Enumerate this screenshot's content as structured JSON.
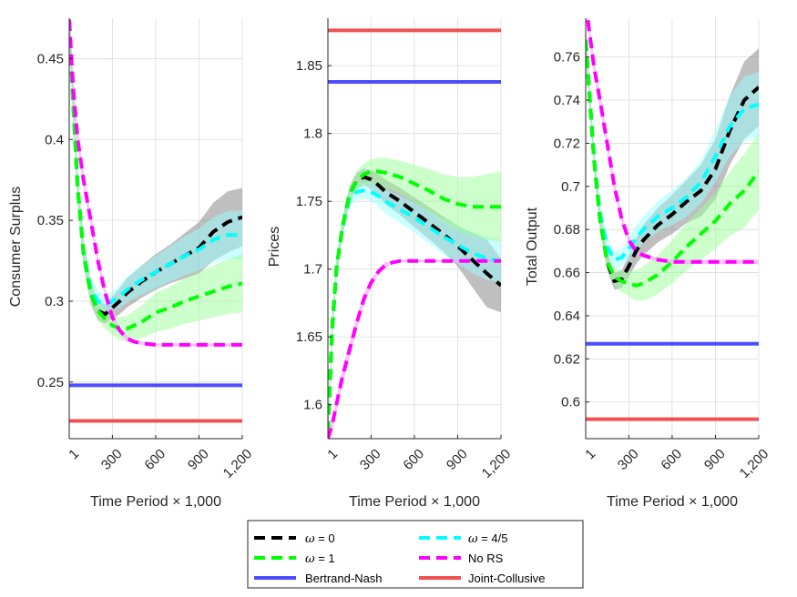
{
  "chart_data": [
    {
      "type": "line",
      "ylabel": "Consumer Surplus",
      "xlabel": "Time Period × 1,000",
      "xlim": [
        1,
        1200
      ],
      "ylim": [
        0.215,
        0.475
      ],
      "xticks": [
        1,
        300,
        600,
        900,
        1200
      ],
      "xtick_labels": [
        "1",
        "300",
        "600",
        "900",
        "1,200"
      ],
      "yticks": [
        0.25,
        0.3,
        0.35,
        0.4,
        0.45
      ],
      "ytick_labels": [
        "0.25",
        "0.3",
        "0.35",
        "0.4",
        "0.45"
      ],
      "grid": true,
      "hlines": [
        {
          "name": "Bertrand-Nash",
          "y": 0.248
        },
        {
          "name": "Joint-Collusive",
          "y": 0.226
        }
      ],
      "series": [
        {
          "name": "ω = 0",
          "x": [
            1,
            30,
            60,
            100,
            150,
            200,
            250,
            300,
            350,
            400,
            500,
            600,
            700,
            800,
            900,
            1000,
            1100,
            1200
          ],
          "y": [
            0.474,
            0.42,
            0.37,
            0.33,
            0.305,
            0.294,
            0.292,
            0.296,
            0.3,
            0.305,
            0.312,
            0.318,
            0.323,
            0.328,
            0.333,
            0.343,
            0.349,
            0.352
          ],
          "band": [
            0.012,
            0.012,
            0.01,
            0.008,
            0.007,
            0.006,
            0.006,
            0.007,
            0.008,
            0.009,
            0.01,
            0.011,
            0.012,
            0.014,
            0.016,
            0.018,
            0.019,
            0.018
          ]
        },
        {
          "name": "ω = 1",
          "x": [
            1,
            30,
            60,
            100,
            150,
            200,
            250,
            300,
            350,
            400,
            500,
            600,
            700,
            800,
            900,
            1000,
            1100,
            1200
          ],
          "y": [
            0.474,
            0.42,
            0.37,
            0.33,
            0.305,
            0.294,
            0.289,
            0.285,
            0.283,
            0.283,
            0.287,
            0.293,
            0.296,
            0.3,
            0.303,
            0.306,
            0.309,
            0.311
          ],
          "band": [
            0.012,
            0.012,
            0.01,
            0.008,
            0.007,
            0.006,
            0.006,
            0.006,
            0.007,
            0.008,
            0.01,
            0.012,
            0.013,
            0.014,
            0.015,
            0.016,
            0.017,
            0.018
          ]
        },
        {
          "name": "ω = 4/5",
          "x": [
            1,
            30,
            60,
            100,
            150,
            200,
            250,
            300,
            350,
            400,
            500,
            600,
            700,
            800,
            900,
            1000,
            1100,
            1200
          ],
          "y": [
            0.474,
            0.42,
            0.37,
            0.33,
            0.308,
            0.3,
            0.298,
            0.3,
            0.303,
            0.307,
            0.313,
            0.318,
            0.323,
            0.328,
            0.332,
            0.338,
            0.341,
            0.341
          ],
          "band": [
            0.012,
            0.012,
            0.01,
            0.008,
            0.007,
            0.006,
            0.006,
            0.006,
            0.007,
            0.008,
            0.009,
            0.01,
            0.011,
            0.012,
            0.013,
            0.014,
            0.015,
            0.015
          ]
        },
        {
          "name": "No RS",
          "x": [
            1,
            30,
            60,
            100,
            150,
            200,
            250,
            300,
            350,
            400,
            450,
            500,
            600,
            700,
            800,
            900,
            1000,
            1100,
            1200
          ],
          "y": [
            0.474,
            0.43,
            0.4,
            0.375,
            0.35,
            0.325,
            0.305,
            0.29,
            0.282,
            0.277,
            0.275,
            0.274,
            0.273,
            0.273,
            0.273,
            0.273,
            0.273,
            0.273,
            0.273
          ],
          "band": [
            0.006,
            0.006,
            0.006,
            0.005,
            0.004,
            0.003,
            0.003,
            0.002,
            0.002,
            0.002,
            0.001,
            0.001,
            0.001,
            0.001,
            0.001,
            0.001,
            0.001,
            0.001,
            0.001
          ]
        }
      ]
    },
    {
      "type": "line",
      "ylabel": "Prices",
      "xlabel": "Time Period × 1,000",
      "xlim": [
        1,
        1200
      ],
      "ylim": [
        1.575,
        1.885
      ],
      "xticks": [
        1,
        300,
        600,
        900,
        1200
      ],
      "xtick_labels": [
        "1",
        "300",
        "600",
        "900",
        "1,200"
      ],
      "yticks": [
        1.6,
        1.65,
        1.7,
        1.75,
        1.8,
        1.85
      ],
      "ytick_labels": [
        "1.6",
        "1.65",
        "1.7",
        "1.75",
        "1.8",
        "1.85"
      ],
      "grid": true,
      "hlines": [
        {
          "name": "Bertrand-Nash",
          "y": 1.838
        },
        {
          "name": "Joint-Collusive",
          "y": 1.876
        }
      ],
      "series": [
        {
          "name": "ω = 0",
          "x": [
            1,
            30,
            60,
            100,
            150,
            200,
            250,
            300,
            350,
            400,
            500,
            600,
            700,
            800,
            900,
            1000,
            1100,
            1200
          ],
          "y": [
            1.58,
            1.655,
            1.7,
            1.73,
            1.755,
            1.765,
            1.768,
            1.766,
            1.762,
            1.757,
            1.75,
            1.742,
            1.734,
            1.726,
            1.717,
            1.707,
            1.697,
            1.688
          ],
          "band": [
            0.006,
            0.008,
            0.008,
            0.007,
            0.006,
            0.006,
            0.006,
            0.007,
            0.008,
            0.009,
            0.01,
            0.011,
            0.012,
            0.013,
            0.015,
            0.02,
            0.025,
            0.02
          ]
        },
        {
          "name": "ω = 1",
          "x": [
            1,
            30,
            60,
            100,
            150,
            200,
            250,
            300,
            350,
            400,
            500,
            600,
            700,
            800,
            900,
            1000,
            1100,
            1200
          ],
          "y": [
            1.58,
            1.655,
            1.7,
            1.73,
            1.755,
            1.765,
            1.77,
            1.772,
            1.772,
            1.771,
            1.768,
            1.763,
            1.758,
            1.752,
            1.748,
            1.746,
            1.746,
            1.746
          ],
          "band": [
            0.006,
            0.008,
            0.008,
            0.007,
            0.006,
            0.007,
            0.008,
            0.009,
            0.01,
            0.011,
            0.012,
            0.014,
            0.016,
            0.018,
            0.02,
            0.022,
            0.024,
            0.026
          ]
        },
        {
          "name": "ω = 4/5",
          "x": [
            1,
            30,
            60,
            100,
            150,
            200,
            250,
            300,
            350,
            400,
            500,
            600,
            700,
            800,
            900,
            1000,
            1100,
            1200
          ],
          "y": [
            1.58,
            1.655,
            1.7,
            1.73,
            1.752,
            1.757,
            1.758,
            1.757,
            1.754,
            1.75,
            1.744,
            1.738,
            1.731,
            1.724,
            1.718,
            1.712,
            1.708,
            1.706
          ],
          "band": [
            0.006,
            0.008,
            0.008,
            0.007,
            0.006,
            0.006,
            0.006,
            0.007,
            0.008,
            0.009,
            0.01,
            0.011,
            0.012,
            0.013,
            0.014,
            0.015,
            0.016,
            0.016
          ]
        },
        {
          "name": "No RS",
          "x": [
            1,
            30,
            60,
            100,
            150,
            200,
            250,
            300,
            350,
            400,
            450,
            500,
            600,
            700,
            800,
            900,
            1000,
            1100,
            1200
          ],
          "y": [
            1.575,
            1.585,
            1.6,
            1.62,
            1.64,
            1.66,
            1.678,
            1.69,
            1.698,
            1.703,
            1.705,
            1.706,
            1.706,
            1.706,
            1.706,
            1.706,
            1.706,
            1.706,
            1.706
          ],
          "band": [
            0.004,
            0.005,
            0.006,
            0.006,
            0.006,
            0.005,
            0.004,
            0.003,
            0.002,
            0.002,
            0.001,
            0.001,
            0.001,
            0.001,
            0.001,
            0.001,
            0.001,
            0.001,
            0.001
          ]
        }
      ]
    },
    {
      "type": "line",
      "ylabel": "Total Output",
      "xlabel": "Time Period × 1,000",
      "xlim": [
        1,
        1200
      ],
      "ylim": [
        0.583,
        0.778
      ],
      "xticks": [
        1,
        300,
        600,
        900,
        1200
      ],
      "xtick_labels": [
        "1",
        "300",
        "600",
        "900",
        "1,200"
      ],
      "yticks": [
        0.6,
        0.62,
        0.64,
        0.66,
        0.68,
        0.7,
        0.72,
        0.74,
        0.76
      ],
      "ytick_labels": [
        "0.6",
        "0.62",
        "0.64",
        "0.66",
        "0.68",
        "0.7",
        "0.72",
        "0.74",
        "0.76"
      ],
      "grid": true,
      "hlines": [
        {
          "name": "Bertrand-Nash",
          "y": 0.627
        },
        {
          "name": "Joint-Collusive",
          "y": 0.592
        }
      ],
      "series": [
        {
          "name": "ω = 0",
          "x": [
            1,
            30,
            60,
            100,
            150,
            200,
            250,
            300,
            350,
            400,
            500,
            600,
            700,
            800,
            900,
            1000,
            1100,
            1200
          ],
          "y": [
            0.768,
            0.74,
            0.712,
            0.685,
            0.665,
            0.656,
            0.657,
            0.663,
            0.67,
            0.675,
            0.682,
            0.687,
            0.693,
            0.698,
            0.708,
            0.726,
            0.74,
            0.746
          ],
          "band": [
            0.006,
            0.006,
            0.005,
            0.005,
            0.004,
            0.004,
            0.004,
            0.005,
            0.006,
            0.007,
            0.008,
            0.009,
            0.01,
            0.012,
            0.014,
            0.016,
            0.018,
            0.018
          ]
        },
        {
          "name": "ω = 1",
          "x": [
            1,
            30,
            60,
            100,
            150,
            200,
            250,
            300,
            350,
            400,
            500,
            600,
            700,
            800,
            900,
            1000,
            1100,
            1200
          ],
          "y": [
            0.768,
            0.74,
            0.712,
            0.685,
            0.665,
            0.658,
            0.656,
            0.655,
            0.654,
            0.655,
            0.659,
            0.665,
            0.672,
            0.678,
            0.684,
            0.692,
            0.698,
            0.707
          ],
          "band": [
            0.006,
            0.006,
            0.005,
            0.005,
            0.004,
            0.004,
            0.005,
            0.006,
            0.007,
            0.008,
            0.009,
            0.01,
            0.011,
            0.012,
            0.013,
            0.015,
            0.017,
            0.018
          ]
        },
        {
          "name": "ω = 4/5",
          "x": [
            1,
            30,
            60,
            100,
            150,
            200,
            250,
            300,
            350,
            400,
            500,
            600,
            700,
            800,
            900,
            1000,
            1100,
            1200
          ],
          "y": [
            0.768,
            0.74,
            0.712,
            0.688,
            0.672,
            0.666,
            0.667,
            0.671,
            0.676,
            0.68,
            0.686,
            0.69,
            0.695,
            0.702,
            0.714,
            0.728,
            0.736,
            0.738
          ],
          "band": [
            0.006,
            0.006,
            0.005,
            0.005,
            0.004,
            0.004,
            0.004,
            0.005,
            0.006,
            0.006,
            0.007,
            0.008,
            0.009,
            0.01,
            0.012,
            0.014,
            0.015,
            0.015
          ]
        },
        {
          "name": "No RS",
          "x": [
            1,
            30,
            60,
            100,
            150,
            200,
            250,
            300,
            350,
            400,
            450,
            500,
            600,
            700,
            800,
            900,
            1000,
            1100,
            1200
          ],
          "y": [
            0.785,
            0.77,
            0.755,
            0.74,
            0.72,
            0.7,
            0.685,
            0.675,
            0.67,
            0.668,
            0.667,
            0.666,
            0.665,
            0.665,
            0.665,
            0.665,
            0.665,
            0.665,
            0.665
          ],
          "band": [
            0.004,
            0.004,
            0.004,
            0.004,
            0.003,
            0.003,
            0.002,
            0.002,
            0.001,
            0.001,
            0.001,
            0.001,
            0.001,
            0.001,
            0.001,
            0.001,
            0.001,
            0.001,
            0.001
          ]
        }
      ]
    }
  ],
  "legend": {
    "location": "bottom-center",
    "entries": [
      {
        "symbol": "ω",
        "text": " = 0",
        "color": "#000000",
        "style": "dashed"
      },
      {
        "symbol": "ω",
        "text": " = 4/5",
        "color": "#00ffff",
        "style": "dashed"
      },
      {
        "symbol": "ω",
        "text": " = 1",
        "color": "#00ff00",
        "style": "dashed"
      },
      {
        "symbol": "",
        "text": "No RS",
        "color": "#ff00ff",
        "style": "dashed"
      },
      {
        "symbol": "",
        "text": "Bertrand-Nash",
        "color": "#4d4dff",
        "style": "solid"
      },
      {
        "symbol": "",
        "text": "Joint-Collusive",
        "color": "#f05050",
        "style": "solid"
      }
    ]
  },
  "colors": {
    "omega0": "#000000",
    "omega1": "#00ff00",
    "omega45": "#00ffff",
    "no_rs": "#ff00ff",
    "bertrand_nash": "#4d4dff",
    "joint_collusive": "#f05050",
    "band_omega0": "#808080",
    "band_omega1": "#99ff99",
    "band_omega45": "#99ffff",
    "band_no_rs": "#ff99ff"
  }
}
